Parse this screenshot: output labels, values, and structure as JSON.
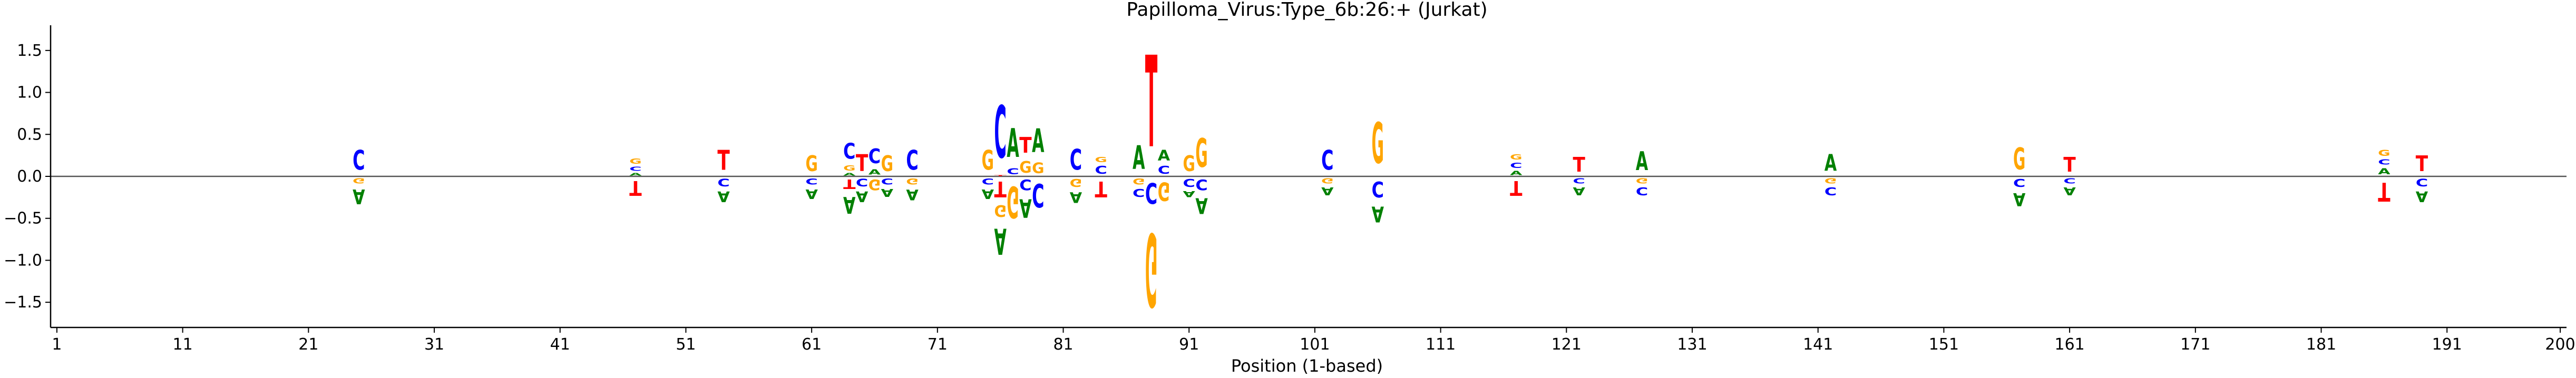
{
  "chart_data": {
    "type": "sequence-logo",
    "title": "Papilloma_Virus:Type_6b:26:+  (Jurkat)",
    "xlabel": "Position (1-based)",
    "ylabel": "",
    "xlim": [
      0.5,
      200.5
    ],
    "ylim": [
      -1.8,
      1.8
    ],
    "x_ticks": [
      1,
      11,
      21,
      31,
      41,
      51,
      61,
      71,
      81,
      91,
      101,
      111,
      121,
      131,
      141,
      151,
      161,
      171,
      181,
      191,
      200
    ],
    "y_ticks": [
      -1.5,
      -1.0,
      -0.5,
      0.0,
      0.5,
      1.0,
      1.5
    ],
    "y_tick_labels": [
      "−1.5",
      "−1.0",
      "−0.5",
      "0.0",
      "0.5",
      "1.0",
      "1.5"
    ],
    "colors": {
      "A": "#008000",
      "C": "#0000ff",
      "G": "#ffa500",
      "T": "#ff0000"
    },
    "positions": [
      {
        "pos": 25,
        "up": [
          [
            "C",
            0.38
          ]
        ],
        "down": [
          [
            "G",
            0.1
          ],
          [
            "A",
            0.28
          ]
        ]
      },
      {
        "pos": 47,
        "up": [
          [
            "A",
            0.05
          ],
          [
            "C",
            0.08
          ],
          [
            "G",
            0.1
          ]
        ],
        "down": [
          [
            "T",
            0.28
          ]
        ]
      },
      {
        "pos": 54,
        "up": [
          [
            "T",
            0.38
          ]
        ],
        "down": [
          [
            "C",
            0.14
          ],
          [
            "A",
            0.2
          ]
        ]
      },
      {
        "pos": 61,
        "up": [
          [
            "G",
            0.3
          ]
        ],
        "down": [
          [
            "C",
            0.12
          ],
          [
            "A",
            0.18
          ]
        ]
      },
      {
        "pos": 64,
        "up": [
          [
            "A",
            0.05
          ],
          [
            "G",
            0.1
          ],
          [
            "C",
            0.3
          ]
        ],
        "down": [
          [
            "T",
            0.18
          ],
          [
            "A",
            0.32
          ]
        ]
      },
      {
        "pos": 65,
        "up": [
          [
            "T",
            0.32
          ]
        ],
        "down": [
          [
            "C",
            0.14
          ],
          [
            "A",
            0.2
          ]
        ]
      },
      {
        "pos": 66,
        "up": [
          [
            "A",
            0.1
          ],
          [
            "C",
            0.28
          ]
        ],
        "down": [
          [
            "G",
            0.2
          ]
        ]
      },
      {
        "pos": 67,
        "up": [
          [
            "G",
            0.3
          ]
        ],
        "down": [
          [
            "C",
            0.12
          ],
          [
            "A",
            0.15
          ]
        ]
      },
      {
        "pos": 69,
        "up": [
          [
            "C",
            0.38
          ]
        ],
        "down": [
          [
            "G",
            0.12
          ],
          [
            "A",
            0.2
          ]
        ]
      },
      {
        "pos": 75,
        "up": [
          [
            "G",
            0.38
          ]
        ],
        "down": [
          [
            "C",
            0.12
          ],
          [
            "A",
            0.18
          ]
        ]
      },
      {
        "pos": 76,
        "up": [
          [
            "T",
            0.02
          ],
          [
            "C",
            1.0
          ]
        ],
        "down": [
          [
            "T",
            0.3
          ],
          [
            "G",
            0.22
          ],
          [
            "A",
            0.5
          ]
        ]
      },
      {
        "pos": 77,
        "up": [
          [
            "C",
            0.12
          ],
          [
            "A",
            0.55
          ]
        ],
        "down": [
          [
            "G",
            0.6
          ]
        ]
      },
      {
        "pos": 78,
        "up": [
          [
            "G",
            0.22
          ],
          [
            "T",
            0.3
          ]
        ],
        "down": [
          [
            "C",
            0.2
          ],
          [
            "A",
            0.35
          ]
        ]
      },
      {
        "pos": 79,
        "up": [
          [
            "G",
            0.2
          ],
          [
            "A",
            0.45
          ]
        ],
        "down": [
          [
            "C",
            0.45
          ]
        ]
      },
      {
        "pos": 82,
        "up": [
          [
            "C",
            0.4
          ]
        ],
        "down": [
          [
            "G",
            0.15
          ],
          [
            "A",
            0.2
          ]
        ]
      },
      {
        "pos": 84,
        "up": [
          [
            "C",
            0.15
          ],
          [
            "G",
            0.1
          ]
        ],
        "down": [
          [
            "T",
            0.3
          ]
        ]
      },
      {
        "pos": 87,
        "up": [
          [
            "A",
            0.45
          ]
        ],
        "down": [
          [
            "G",
            0.12
          ],
          [
            "C",
            0.15
          ]
        ]
      },
      {
        "pos": 88,
        "up": [
          [
            "T",
            1.75
          ]
        ],
        "down": [
          [
            "C",
            0.4
          ],
          [
            "G",
            1.4
          ]
        ]
      },
      {
        "pos": 89,
        "up": [
          [
            "C",
            0.15
          ],
          [
            "A",
            0.2
          ]
        ],
        "down": [
          [
            "G",
            0.35
          ]
        ]
      },
      {
        "pos": 91,
        "up": [
          [
            "G",
            0.3
          ]
        ],
        "down": [
          [
            "C",
            0.15
          ],
          [
            "A",
            0.12
          ]
        ]
      },
      {
        "pos": 92,
        "up": [
          [
            "G",
            0.55
          ]
        ],
        "down": [
          [
            "C",
            0.2
          ],
          [
            "A",
            0.3
          ]
        ]
      },
      {
        "pos": 102,
        "up": [
          [
            "C",
            0.38
          ]
        ],
        "down": [
          [
            "G",
            0.1
          ],
          [
            "A",
            0.15
          ]
        ]
      },
      {
        "pos": 106,
        "up": [
          [
            "G",
            0.78
          ]
        ],
        "down": [
          [
            "C",
            0.3
          ],
          [
            "A",
            0.3
          ]
        ]
      },
      {
        "pos": 117,
        "up": [
          [
            "A",
            0.08
          ],
          [
            "C",
            0.1
          ],
          [
            "G",
            0.1
          ]
        ],
        "down": [
          [
            "T",
            0.28
          ]
        ]
      },
      {
        "pos": 122,
        "up": [
          [
            "T",
            0.28
          ]
        ],
        "down": [
          [
            "C",
            0.1
          ],
          [
            "A",
            0.15
          ]
        ]
      },
      {
        "pos": 127,
        "up": [
          [
            "A",
            0.36
          ]
        ],
        "down": [
          [
            "G",
            0.1
          ],
          [
            "C",
            0.15
          ]
        ]
      },
      {
        "pos": 142,
        "up": [
          [
            "A",
            0.32
          ]
        ],
        "down": [
          [
            "G",
            0.1
          ],
          [
            "C",
            0.15
          ]
        ]
      },
      {
        "pos": 157,
        "up": [
          [
            "G",
            0.42
          ]
        ],
        "down": [
          [
            "C",
            0.15
          ],
          [
            "A",
            0.25
          ]
        ]
      },
      {
        "pos": 161,
        "up": [
          [
            "T",
            0.28
          ]
        ],
        "down": [
          [
            "C",
            0.1
          ],
          [
            "A",
            0.15
          ]
        ]
      },
      {
        "pos": 186,
        "up": [
          [
            "A",
            0.12
          ],
          [
            "C",
            0.1
          ],
          [
            "G",
            0.12
          ]
        ],
        "down": [
          [
            "T",
            0.36
          ]
        ]
      },
      {
        "pos": 189,
        "up": [
          [
            "T",
            0.3
          ]
        ],
        "down": [
          [
            "C",
            0.14
          ],
          [
            "A",
            0.2
          ]
        ]
      }
    ]
  }
}
